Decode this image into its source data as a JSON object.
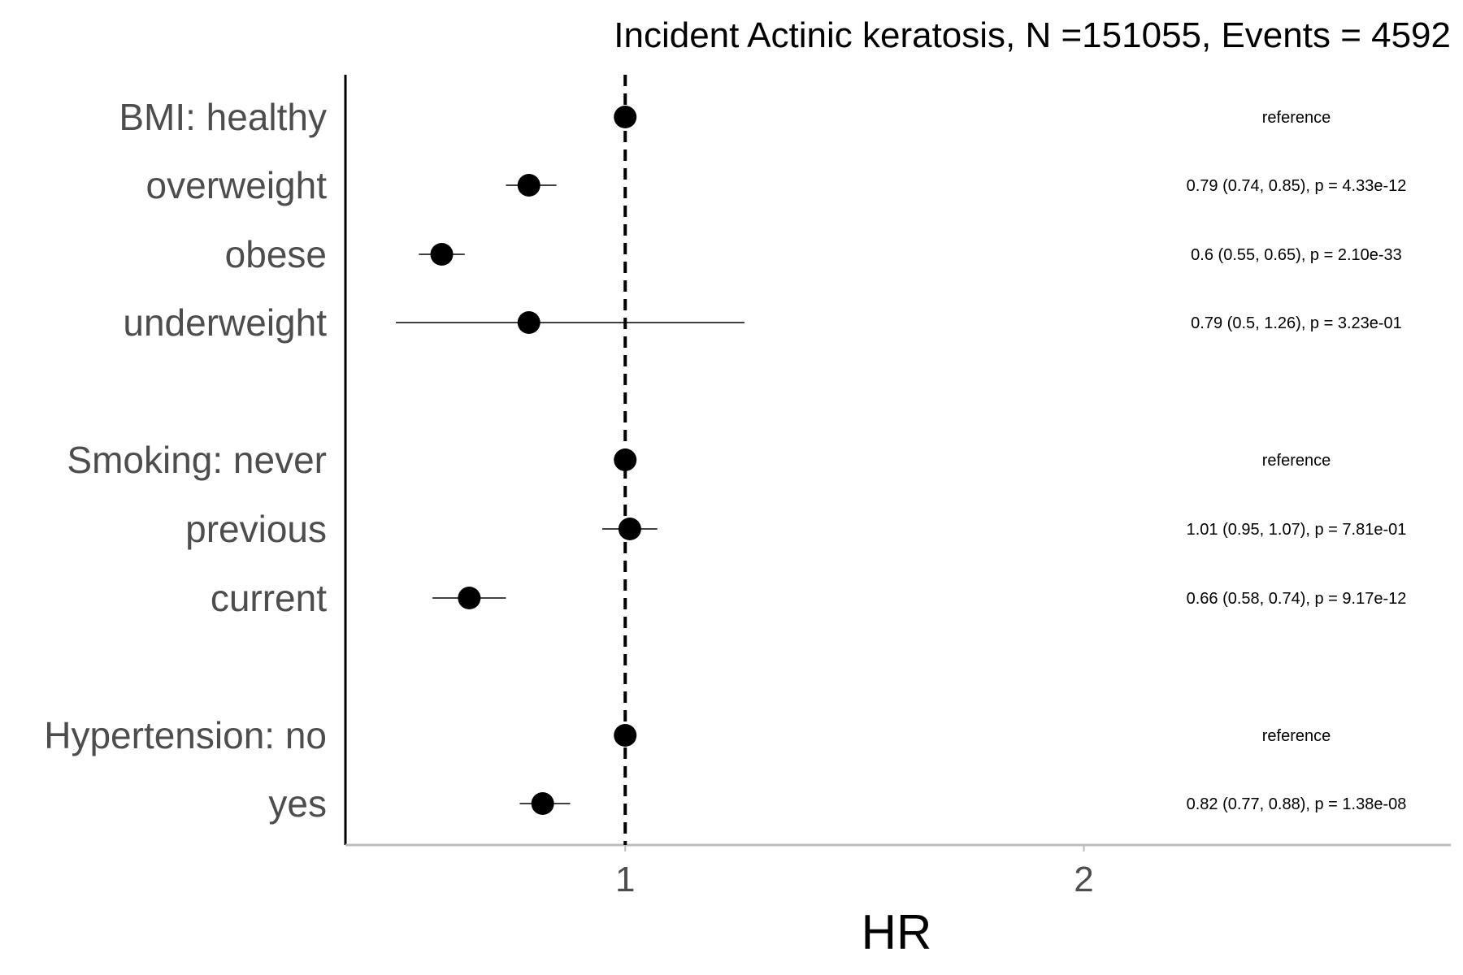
{
  "chart_data": {
    "type": "forest",
    "title": "Incident Actinic keratosis, N =151055, Events = 4592",
    "xlabel": "HR",
    "xlim": [
      0.39,
      2.8
    ],
    "xticks": [
      1,
      2
    ],
    "tick_labels": [
      "1",
      "2"
    ],
    "reference_line": 1,
    "rows": [
      {
        "label": "BMI: healthy",
        "hr": 1,
        "lo": 1,
        "hi": 1,
        "annotation": "reference"
      },
      {
        "label": "overweight",
        "hr": 0.79,
        "lo": 0.74,
        "hi": 0.85,
        "annotation": "0.79 (0.74, 0.85), p = 4.33e-12"
      },
      {
        "label": "obese",
        "hr": 0.6,
        "lo": 0.55,
        "hi": 0.65,
        "annotation": "0.6 (0.55, 0.65), p = 2.10e-33"
      },
      {
        "label": "underweight",
        "hr": 0.79,
        "lo": 0.5,
        "hi": 1.26,
        "annotation": "0.79 (0.5, 1.26), p = 3.23e-01"
      },
      {
        "label": "Smoking: never",
        "hr": 1,
        "lo": 1,
        "hi": 1,
        "annotation": "reference"
      },
      {
        "label": "previous",
        "hr": 1.01,
        "lo": 0.95,
        "hi": 1.07,
        "annotation": "1.01 (0.95, 1.07), p = 7.81e-01"
      },
      {
        "label": "current",
        "hr": 0.66,
        "lo": 0.58,
        "hi": 0.74,
        "annotation": "0.66 (0.58, 0.74), p = 9.17e-12"
      },
      {
        "label": "Hypertension: no",
        "hr": 1,
        "lo": 1,
        "hi": 1,
        "annotation": "reference"
      },
      {
        "label": "yes",
        "hr": 0.82,
        "lo": 0.77,
        "hi": 0.88,
        "annotation": "0.82 (0.77, 0.88), p = 1.38e-08"
      }
    ]
  },
  "colors": {
    "points": "#000000",
    "axis": "#bdbdbd",
    "label_text": "#4d4d4d"
  }
}
